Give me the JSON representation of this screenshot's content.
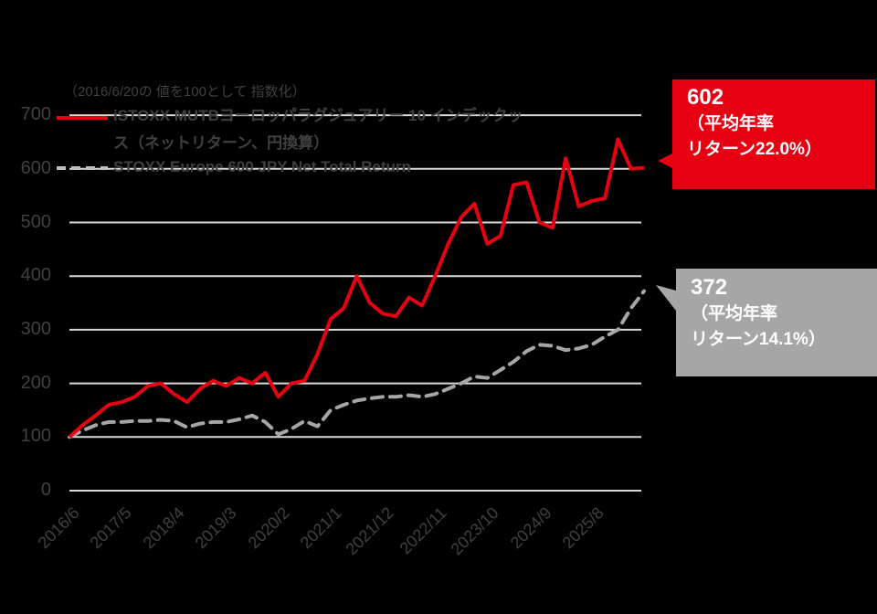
{
  "chart_data": {
    "type": "line",
    "title": "",
    "subtitle": "（2016/6/20の 値を100として 指数化）",
    "xlabel": "",
    "ylabel": "",
    "ylim": [
      0,
      700
    ],
    "yticks": [
      0,
      100,
      200,
      300,
      400,
      500,
      600,
      700
    ],
    "xticks": [
      "2016/6",
      "2017/5",
      "2018/4",
      "2019/3",
      "2020/2",
      "2021/1",
      "2021/12",
      "2022/11",
      "2023/10",
      "2024/9",
      "2025/8"
    ],
    "grid": true,
    "legend_position": "top-left (inside plot)",
    "x": [
      "2016/6",
      "2016/10",
      "2017/1",
      "2017/3",
      "2017/5",
      "2017/8",
      "2017/11",
      "2018/2",
      "2018/4",
      "2018/7",
      "2018/10",
      "2019/1",
      "2019/3",
      "2019/6",
      "2019/9",
      "2019/12",
      "2020/2",
      "2020/3",
      "2020/6",
      "2020/9",
      "2020/12",
      "2021/1",
      "2021/4",
      "2021/7",
      "2021/10",
      "2021/12",
      "2022/3",
      "2022/6",
      "2022/9",
      "2022/11",
      "2023/2",
      "2023/5",
      "2023/8",
      "2023/10",
      "2024/1",
      "2024/4",
      "2024/7",
      "2024/9",
      "2024/12",
      "2025/3",
      "2025/6",
      "2025/8",
      "2025/11",
      "2026/2",
      "2026/3"
    ],
    "series": [
      {
        "name": "iSTOXX MUTBヨーロッパラグジュアリー 10 インデックス（ネットリターン、円換算）",
        "color": "#E60012",
        "style": "solid",
        "values": [
          100,
          122,
          140,
          160,
          165,
          175,
          195,
          200,
          180,
          165,
          190,
          205,
          195,
          210,
          200,
          220,
          175,
          200,
          205,
          255,
          320,
          340,
          400,
          350,
          330,
          325,
          360,
          345,
          400,
          460,
          510,
          535,
          460,
          475,
          570,
          575,
          500,
          490,
          620,
          530,
          540,
          545,
          655,
          600,
          602
        ]
      },
      {
        "name": "STOXX Europe 600 JPY Net Total Return",
        "color": "#A6A6A6",
        "style": "dashed",
        "values": [
          100,
          112,
          122,
          128,
          128,
          130,
          130,
          132,
          130,
          118,
          125,
          128,
          128,
          133,
          140,
          128,
          105,
          115,
          130,
          120,
          150,
          160,
          168,
          172,
          175,
          175,
          178,
          175,
          180,
          190,
          200,
          213,
          210,
          225,
          240,
          260,
          272,
          270,
          262,
          265,
          272,
          287,
          300,
          340,
          372
        ]
      }
    ],
    "annotations": [
      {
        "series": "iSTOXX MUTBヨーロッパラグジュアリー 10 インデックス",
        "value": "602",
        "text": "（平均年率リターン22.0%）",
        "color": "#E60012"
      },
      {
        "series": "STOXX Europe 600 JPY Net Total Return",
        "value": "372",
        "text": "（平均年率リターン14.1%）",
        "color": "#A6A6A6"
      }
    ]
  },
  "subtitle": "（2016/6/20の 値を100として 指数化）",
  "legend": {
    "red_line1": "iSTOXX MUTBヨーロッパラグジュアリー 10 インデックッ",
    "red_line2": "ス（ネットリターン、円換算）",
    "gray": "STOXX Europe 600 JPY Net Total Return"
  },
  "callouts": {
    "red": {
      "value": "602",
      "line1": "（平均年率",
      "line2": "リターン22.0%）",
      "color": "#E60012"
    },
    "gray": {
      "value": "372",
      "line1": "（平均年率",
      "line2": "リターン14.1%）",
      "color": "#A6A6A6"
    }
  }
}
